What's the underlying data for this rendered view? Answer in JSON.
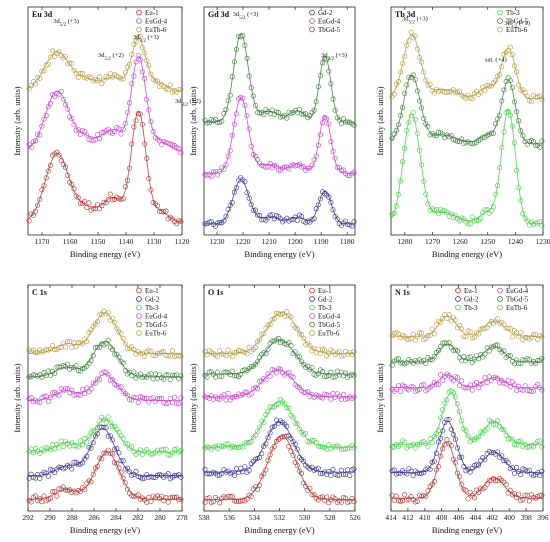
{
  "chart_data": [
    {
      "type": "scatter",
      "title": "Eu 3d",
      "xlabel": "Binding energy (eV)",
      "ylabel": "Intensity (arb. units)",
      "xlim": [
        1175,
        1120
      ],
      "xticks": [
        1170,
        1160,
        1150,
        1140,
        1130,
        1120
      ],
      "legend_position": "top-right",
      "annotations": [
        "3d5/2 (+3)",
        "3d5/2 (+2)",
        "3d3/2 (+3)",
        "3d3/2 (+2)"
      ],
      "series": [
        {
          "name": "Eu-1",
          "color": "#b03030",
          "offset": 0.0,
          "peaks": [
            [
              1164.6,
              0.26,
              4.2
            ],
            [
              1154,
              0.05,
              4
            ],
            [
              1144.6,
              0.09,
              3.5
            ],
            [
              1135.5,
              0.42,
              2.6
            ],
            [
              1128,
              0.04,
              3
            ]
          ]
        },
        {
          "name": "EuGd-4",
          "color": "#c040c8",
          "offset": 0.27,
          "peaks": [
            [
              1164.6,
              0.23,
              4.2
            ],
            [
              1154,
              0.05,
              4
            ],
            [
              1144.6,
              0.08,
              3.5
            ],
            [
              1135.5,
              0.36,
              2.6
            ],
            [
              1128,
              0.04,
              3
            ]
          ]
        },
        {
          "name": "EuTb-6",
          "color": "#b09a40",
          "offset": 0.5,
          "peaks": [
            [
              1164.6,
              0.15,
              4.5
            ],
            [
              1154,
              0.04,
              4
            ],
            [
              1144.6,
              0.05,
              3.5
            ],
            [
              1135.5,
              0.2,
              2.6
            ],
            [
              1128,
              0.03,
              3
            ]
          ]
        }
      ]
    },
    {
      "type": "scatter",
      "title": "Gd 3d",
      "xlabel": "Binding energy (eV)",
      "ylabel": "Intensity (arb. units)",
      "xlim": [
        1235,
        1177
      ],
      "xticks": [
        1230,
        1220,
        1210,
        1200,
        1190,
        1180
      ],
      "legend_position": "top-right",
      "annotations": [
        "3d5/2 (+3)",
        "3d3/2 (+3)"
      ],
      "series": [
        {
          "name": "Gd-2",
          "color": "#303090",
          "offset": 0.0,
          "peaks": [
            [
              1220.8,
              0.2,
              3
            ],
            [
              1210,
              0.03,
              4
            ],
            [
              1199,
              0.03,
              3
            ],
            [
              1188.5,
              0.15,
              2.4
            ]
          ]
        },
        {
          "name": "EuGd-4",
          "color": "#c040c8",
          "offset": 0.23,
          "peaks": [
            [
              1220.8,
              0.34,
              2.8
            ],
            [
              1210,
              0.04,
              4
            ],
            [
              1199,
              0.04,
              3
            ],
            [
              1188.5,
              0.26,
              2.2
            ]
          ]
        },
        {
          "name": "TbGd-5",
          "color": "#3a7a3a",
          "offset": 0.46,
          "peaks": [
            [
              1220.8,
              0.4,
              2.8
            ],
            [
              1210,
              0.05,
              4
            ],
            [
              1199,
              0.05,
              3
            ],
            [
              1188.5,
              0.3,
              2.2
            ]
          ]
        }
      ]
    },
    {
      "type": "scatter",
      "title": "Tb 3d",
      "xlabel": "Binding energy (eV)",
      "ylabel": "Intensity (arb. units)",
      "xlim": [
        1285,
        1230
      ],
      "xticks": [
        1280,
        1270,
        1260,
        1250,
        1240,
        1230
      ],
      "legend_position": "top-right",
      "annotations": [
        "3d5/2 (+3)",
        "3d3/2 (+3)",
        "sat. (+4)"
      ],
      "series": [
        {
          "name": "Tb-3",
          "color": "#44cc44",
          "offset": 0.0,
          "peaks": [
            [
              1277.5,
              0.48,
              3
            ],
            [
              1266,
              0.05,
              5
            ],
            [
              1250,
              0.05,
              3
            ],
            [
              1242.5,
              0.5,
              2.5
            ]
          ]
        },
        {
          "name": "TbGd-5",
          "color": "#3a7a3a",
          "offset": 0.35,
          "peaks": [
            [
              1277.5,
              0.3,
              3
            ],
            [
              1266,
              0.04,
              5
            ],
            [
              1250,
              0.04,
              3
            ],
            [
              1242.5,
              0.28,
              2.5
            ]
          ]
        },
        {
          "name": "EuTb-6",
          "color": "#b09a40",
          "offset": 0.55,
          "peaks": [
            [
              1277.5,
              0.28,
              3
            ],
            [
              1266,
              0.04,
              5
            ],
            [
              1250,
              0.05,
              3
            ],
            [
              1242.5,
              0.22,
              2.5
            ]
          ]
        }
      ]
    },
    {
      "type": "scatter",
      "title": "C 1s",
      "xlabel": "Binding energy (eV)",
      "ylabel": "Intensity (arb. units)",
      "xlim": [
        292,
        278
      ],
      "xticks": [
        292,
        290,
        288,
        286,
        284,
        282,
        280,
        278
      ],
      "legend_position": "top-right",
      "series": [
        {
          "name": "Eu-1",
          "color": "#b03030",
          "offset": 0.0,
          "peaks": [
            [
              284.8,
              0.2,
              1.1
            ],
            [
              288.5,
              0.04,
              1.0
            ]
          ]
        },
        {
          "name": "Gd-2",
          "color": "#303090",
          "offset": 0.1,
          "peaks": [
            [
              285.2,
              0.2,
              1.1
            ],
            [
              288.5,
              0.04,
              1.0
            ]
          ]
        },
        {
          "name": "Tb-3",
          "color": "#44cc44",
          "offset": 0.2,
          "peaks": [
            [
              285.0,
              0.14,
              1.1
            ],
            [
              288.5,
              0.04,
              1.0
            ]
          ]
        },
        {
          "name": "EuGd-4",
          "color": "#c040c8",
          "offset": 0.42,
          "peaks": [
            [
              285.0,
              0.11,
              1.1
            ],
            [
              288.5,
              0.04,
              1.0
            ]
          ]
        },
        {
          "name": "TbGd-5",
          "color": "#3a7a3a",
          "offset": 0.52,
          "peaks": [
            [
              285.0,
              0.15,
              1.1
            ],
            [
              288.5,
              0.04,
              1.0
            ]
          ]
        },
        {
          "name": "EuTb-6",
          "color": "#b09a40",
          "offset": 0.62,
          "peaks": [
            [
              285.0,
              0.17,
              1.1
            ],
            [
              288.5,
              0.04,
              1.0
            ]
          ]
        }
      ]
    },
    {
      "type": "scatter",
      "title": "O 1s",
      "xlabel": "Binding energy (eV)",
      "ylabel": "Intensity (arb. units)",
      "xlim": [
        538,
        526
      ],
      "xticks": [
        538,
        536,
        534,
        532,
        530,
        528,
        526
      ],
      "legend_position": "top-right",
      "series": [
        {
          "name": "Eu-1",
          "color": "#b03030",
          "offset": 0.0,
          "peaks": [
            [
              531.8,
              0.28,
              1.1
            ]
          ]
        },
        {
          "name": "Gd-2",
          "color": "#303090",
          "offset": 0.12,
          "peaks": [
            [
              532.0,
              0.22,
              1.1
            ]
          ]
        },
        {
          "name": "Tb-3",
          "color": "#44cc44",
          "offset": 0.23,
          "peaks": [
            [
              532.0,
              0.2,
              1.2
            ]
          ]
        },
        {
          "name": "EuGd-4",
          "color": "#c040c8",
          "offset": 0.45,
          "peaks": [
            [
              532.1,
              0.12,
              1.2
            ]
          ]
        },
        {
          "name": "TbGd-5",
          "color": "#3a7a3a",
          "offset": 0.55,
          "peaks": [
            [
              532.0,
              0.15,
              1.2
            ]
          ]
        },
        {
          "name": "EuTb-6",
          "color": "#b09a40",
          "offset": 0.64,
          "peaks": [
            [
              531.8,
              0.18,
              1.2
            ]
          ]
        }
      ]
    },
    {
      "type": "scatter",
      "title": "N 1s",
      "xlabel": "Binding energy (eV)",
      "ylabel": "Intensity (arb. units)",
      "xlim": [
        414,
        396
      ],
      "xticks": [
        414,
        412,
        410,
        408,
        406,
        404,
        402,
        400,
        398,
        396
      ],
      "legend_position": "top-right",
      "series": [
        {
          "name": "Eu-1",
          "color": "#b03030",
          "offset": 0.0,
          "peaks": [
            [
              407.4,
              0.22,
              1.0
            ],
            [
              401.8,
              0.08,
              1.2
            ]
          ]
        },
        {
          "name": "Gd-2",
          "color": "#303090",
          "offset": 0.1,
          "peaks": [
            [
              407.3,
              0.2,
              1.0
            ],
            [
              401.8,
              0.08,
              1.2
            ]
          ]
        },
        {
          "name": "Tb-3",
          "color": "#44cc44",
          "offset": 0.21,
          "peaks": [
            [
              406.9,
              0.2,
              1.0
            ],
            [
              401.8,
              0.09,
              1.2
            ]
          ]
        },
        {
          "name": "EuGd-4",
          "color": "#c040c8",
          "offset": 0.43,
          "peaks": [
            [
              407.3,
              0.05,
              1.0
            ],
            [
              401.8,
              0.04,
              1.2
            ]
          ]
        },
        {
          "name": "TbGd-5",
          "color": "#3a7a3a",
          "offset": 0.53,
          "peaks": [
            [
              407.3,
              0.07,
              1.0
            ],
            [
              401.8,
              0.06,
              1.2
            ]
          ]
        },
        {
          "name": "EuTb-6",
          "color": "#b09a40",
          "offset": 0.63,
          "peaks": [
            [
              407.3,
              0.08,
              1.0
            ],
            [
              401.8,
              0.06,
              1.2
            ]
          ]
        }
      ]
    }
  ]
}
